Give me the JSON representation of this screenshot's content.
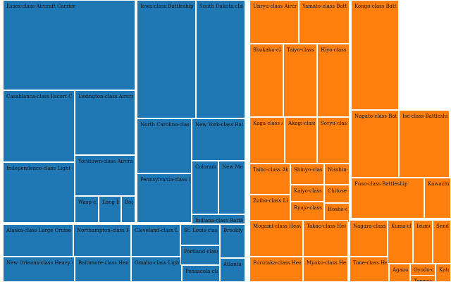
{
  "chart_data": {
    "type": "treemap",
    "title": "",
    "groups": [
      {
        "name": "United States Navy",
        "color": "#1f77b4",
        "items": [
          {
            "label": "Essex-class Aircraft Carrier",
            "value": 24
          },
          {
            "label": "Casablanca-class Escort Carrier",
            "value": 50
          },
          {
            "label": "Lexington-class Aircraft Carrier",
            "value": 2
          },
          {
            "label": "Independence-class Light Carrier",
            "value": 9
          },
          {
            "label": "Yorktown-class Aircraft Carrier",
            "value": 3
          },
          {
            "label": "Wasp-class",
            "value": 1
          },
          {
            "label": "Long Island",
            "value": 1
          },
          {
            "label": "Bogue",
            "value": 1
          },
          {
            "label": "Iowa-class Battleship",
            "value": 4
          },
          {
            "label": "South Dakota-class Battleship",
            "value": 4
          },
          {
            "label": "North Carolina-class Battleship",
            "value": 2
          },
          {
            "label": "New York-class Battleship",
            "value": 2
          },
          {
            "label": "Pennsylvania-class Battleship",
            "value": 2
          },
          {
            "label": "Colorado-class Battleship",
            "value": 2
          },
          {
            "label": "New Mexico-class Battleship",
            "value": 3
          },
          {
            "label": "Indiana-class Battleship",
            "value": 1
          },
          {
            "label": "Alaska-class Large Cruiser",
            "value": 2
          },
          {
            "label": "New Orleans-class Heavy Cruiser",
            "value": 7
          },
          {
            "label": "Northampton-class Heavy Cruiser",
            "value": 6
          },
          {
            "label": "Baltimore-class Heavy Cruiser",
            "value": 14
          },
          {
            "label": "Cleveland-class Light Cruiser",
            "value": 27
          },
          {
            "label": "Omaha-class Light Cruiser",
            "value": 10
          },
          {
            "label": "St. Louis-class Light Cruiser",
            "value": 2
          },
          {
            "label": "Portland-class Heavy Cruiser",
            "value": 2
          },
          {
            "label": "Pensacola-class Heavy Cruiser",
            "value": 2
          },
          {
            "label": "Brooklyn-class Light Cruiser",
            "value": 7
          },
          {
            "label": "Atlanta-class Light Cruiser",
            "value": 8
          }
        ]
      },
      {
        "name": "Imperial Japanese Navy",
        "color": "#ff7f0e",
        "items": [
          {
            "label": "Unryu-class Aircraft Carrier",
            "value": 3
          },
          {
            "label": "Shokaku-class",
            "value": 2
          },
          {
            "label": "Taiyo-class Escort Carrier",
            "value": 3
          },
          {
            "label": "Hiyo-class Escort Carrier",
            "value": 2
          },
          {
            "label": "Kaga-class Aircraft Carrier",
            "value": 1
          },
          {
            "label": "Akagi-class Aircraft Carrier",
            "value": 1
          },
          {
            "label": "Soryu-class Aircraft Carrier",
            "value": 1
          },
          {
            "label": "Taiho-class Aircraft Carrier",
            "value": 1
          },
          {
            "label": "Shinyo-class Escort Carrier",
            "value": 1
          },
          {
            "label": "Nisshin-class",
            "value": 1
          },
          {
            "label": "Kaiyo-class Escort Carrier",
            "value": 1
          },
          {
            "label": "Chitose-class",
            "value": 2
          },
          {
            "label": "Zuiho-class Light Carrier",
            "value": 2
          },
          {
            "label": "Ryujo-class Aircraft Carrier",
            "value": 1
          },
          {
            "label": "Hosho-class",
            "value": 1
          },
          {
            "label": "Yamato-class Battleship",
            "value": 2
          },
          {
            "label": "Kongo-class Battleship",
            "value": 4
          },
          {
            "label": "Nagato-class Battleship",
            "value": 2
          },
          {
            "label": "Ise-class Battleship",
            "value": 2
          },
          {
            "label": "Fuso-class Battleship",
            "value": 2
          },
          {
            "label": "Kawachi-class Battleship",
            "value": 2
          },
          {
            "label": "Mogami-class Heavy Cruiser",
            "value": 4
          },
          {
            "label": "Takao-class Heavy Cruiser",
            "value": 4
          },
          {
            "label": "Furutaka-class Heavy Cruiser",
            "value": 2
          },
          {
            "label": "Myoko-class Heavy Cruiser",
            "value": 4
          },
          {
            "label": "Nagara-class Light Cruiser",
            "value": 6
          },
          {
            "label": "Tone-class Heavy Cruiser",
            "value": 2
          },
          {
            "label": "Kuma-class Light Cruiser",
            "value": 5
          },
          {
            "label": "Izumo-class",
            "value": 2
          },
          {
            "label": "Sendai-class Light Cruiser",
            "value": 3
          },
          {
            "label": "Agano-class Light Cruiser",
            "value": 4
          },
          {
            "label": "Oyodo-class Light Cruiser",
            "value": 1
          },
          {
            "label": "Katori-class",
            "value": 3
          },
          {
            "label": "Tenryu-class Light Cruiser",
            "value": 2
          }
        ]
      }
    ]
  }
}
